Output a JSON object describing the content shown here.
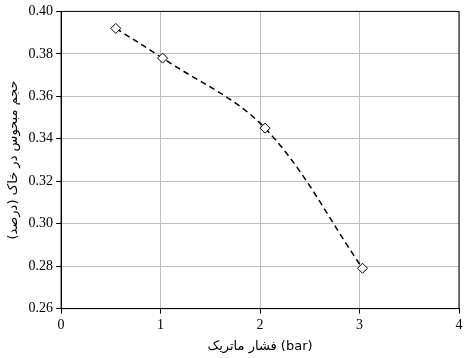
{
  "chart_data": {
    "type": "line",
    "x_label": "فشار ماتریک (bar)",
    "y_label": "حجم مبحوس در خاک (درصد)",
    "x": [
      0.55,
      1.02,
      2.05,
      3.03
    ],
    "values": [
      0.392,
      0.378,
      0.345,
      0.279
    ],
    "color": "#000000",
    "marker": "diamond",
    "line_style": "dashed",
    "xlim": [
      0,
      4
    ],
    "xticks": [
      0,
      1,
      2,
      3,
      4
    ],
    "ylim": [
      0.26,
      0.4
    ],
    "yticks": [
      0.26,
      0.28,
      {
        "value": 0.3,
        "label": "0.30"
      },
      0.32,
      0.34,
      0.36,
      0.38,
      {
        "value": 0.4,
        "label": "0.40"
      }
    ],
    "grid": true
  }
}
